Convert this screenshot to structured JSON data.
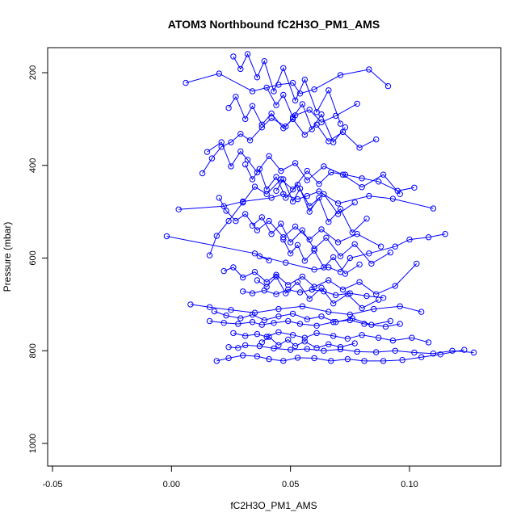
{
  "chart_data": {
    "type": "scatter",
    "title": "ATOM3 Northbound fC2H3O_PM1_AMS",
    "xlabel": "fC2H3O_PM1_AMS",
    "ylabel": "Pressure (mbar)",
    "xlim": [
      -0.05,
      0.14
    ],
    "ylim": [
      1045,
      150
    ],
    "y_reversed": true,
    "grid": false,
    "legend": "none",
    "color": "#0000ff",
    "marker": "open-circle",
    "lines_connect_points": true,
    "x_ticks": [
      -0.05,
      0.0,
      0.05,
      0.1
    ],
    "x_tick_labels": [
      "-0.05",
      "0.00",
      "0.05",
      "0.10"
    ],
    "y_ticks": [
      200,
      400,
      600,
      800,
      1000
    ],
    "y_tick_labels": [
      "200",
      "400",
      "600",
      "800",
      "1000"
    ],
    "series": [
      {
        "x": [
          -0.002,
          0.035,
          0.041,
          0.037,
          0.048,
          0.06,
          0.066,
          0.071,
          0.075,
          0.083,
          0.094,
          0.1,
          0.108,
          0.115
        ],
        "y": [
          553,
          590,
          605,
          596,
          610,
          625,
          620,
          630,
          600,
          590,
          575,
          560,
          555,
          548
        ]
      },
      {
        "x": [
          0.003,
          0.022,
          0.03,
          0.042,
          0.047,
          0.053,
          0.057,
          0.062,
          0.07,
          0.083,
          0.093,
          0.11
        ],
        "y": [
          495,
          488,
          478,
          470,
          462,
          473,
          466,
          456,
          482,
          466,
          472,
          493
        ]
      },
      {
        "x": [
          0.006,
          0.02,
          0.034,
          0.045,
          0.051,
          0.054,
          0.06,
          0.071,
          0.083,
          0.091
        ],
        "y": [
          222,
          202,
          240,
          226,
          222,
          245,
          236,
          205,
          193,
          229
        ]
      },
      {
        "x": [
          0.008,
          0.016,
          0.025,
          0.035,
          0.045,
          0.055,
          0.066,
          0.075,
          0.085,
          0.096,
          0.105
        ],
        "y": [
          700,
          706,
          712,
          718,
          710,
          704,
          716,
          722,
          710,
          704,
          716
        ]
      },
      {
        "x": [
          0.016,
          0.022,
          0.028,
          0.034,
          0.038,
          0.043,
          0.049,
          0.054,
          0.061,
          0.068,
          0.075,
          0.081,
          0.09,
          0.096
        ],
        "y": [
          736,
          740,
          742,
          738,
          744,
          740,
          736,
          742,
          746,
          738,
          734,
          742,
          748,
          742
        ]
      },
      {
        "x": [
          0.019,
          0.024,
          0.03,
          0.036,
          0.041,
          0.047,
          0.053,
          0.06,
          0.067,
          0.074,
          0.081,
          0.089,
          0.097,
          0.105,
          0.113,
          0.123
        ],
        "y": [
          822,
          816,
          810,
          812,
          818,
          822,
          815,
          816,
          822,
          818,
          822,
          822,
          820,
          814,
          808,
          798
        ]
      },
      {
        "x": [
          0.024,
          0.028,
          0.031,
          0.037,
          0.043,
          0.05,
          0.057,
          0.064,
          0.071,
          0.078,
          0.086,
          0.094,
          0.102,
          0.11,
          0.118,
          0.127
        ],
        "y": [
          792,
          794,
          788,
          790,
          795,
          798,
          796,
          800,
          797,
          802,
          803,
          800,
          804,
          806,
          800,
          804
        ]
      },
      {
        "x": [
          0.026,
          0.031,
          0.036,
          0.04,
          0.045,
          0.051,
          0.056,
          0.061,
          0.068,
          0.074,
          0.08,
          0.087,
          0.093,
          0.101,
          0.108
        ],
        "y": [
          762,
          768,
          764,
          770,
          760,
          766,
          772,
          762,
          768,
          774,
          766,
          772,
          778,
          772,
          782
        ]
      },
      {
        "x": [
          0.03,
          0.034,
          0.039,
          0.044,
          0.049,
          0.054,
          0.059,
          0.064,
          0.069,
          0.075,
          0.082,
          0.089
        ],
        "y": [
          672,
          676,
          670,
          678,
          668,
          674,
          668,
          672,
          680,
          676,
          682,
          686
        ]
      },
      {
        "x": [
          0.016,
          0.019,
          0.024,
          0.03,
          0.035,
          0.04,
          0.046,
          0.051,
          0.057,
          0.062,
          0.067,
          0.073,
          0.08,
          0.087,
          0.095,
          0.102
        ],
        "y": [
          594,
          552,
          520,
          480,
          446,
          462,
          430,
          452,
          412,
          440,
          415,
          420,
          428,
          435,
          455,
          448
        ]
      },
      {
        "x": [
          0.013,
          0.017,
          0.021,
          0.025,
          0.029,
          0.033,
          0.038,
          0.042,
          0.048,
          0.052,
          0.058,
          0.063,
          0.069,
          0.078
        ],
        "y": [
          417,
          385,
          360,
          350,
          332,
          346,
          318,
          298,
          316,
          292,
          280,
          307,
          293,
          267
        ]
      },
      {
        "x": [
          0.015,
          0.021,
          0.025,
          0.029,
          0.032,
          0.036,
          0.041,
          0.046,
          0.052,
          0.057,
          0.064,
          0.072,
          0.08,
          0.089,
          0.096
        ],
        "y": [
          371,
          350,
          402,
          370,
          388,
          415,
          380,
          412,
          395,
          432,
          402,
          420,
          447,
          420,
          462
        ]
      },
      {
        "x": [
          0.02,
          0.023,
          0.027,
          0.031,
          0.036,
          0.041,
          0.047,
          0.052,
          0.058,
          0.063,
          0.07,
          0.078,
          0.088
        ],
        "y": [
          470,
          498,
          520,
          505,
          540,
          520,
          555,
          532,
          560,
          538,
          566,
          548,
          575
        ]
      },
      {
        "x": [
          0.022,
          0.026,
          0.03,
          0.035,
          0.04,
          0.044,
          0.049,
          0.055,
          0.06,
          0.066,
          0.072,
          0.079,
          0.086,
          0.094,
          0.103
        ],
        "y": [
          628,
          620,
          642,
          630,
          652,
          636,
          658,
          640,
          662,
          648,
          668,
          652,
          678,
          660,
          612
        ]
      },
      {
        "x": [
          0.018,
          0.023,
          0.029,
          0.034,
          0.039,
          0.045,
          0.051,
          0.057,
          0.063,
          0.069,
          0.076,
          0.084,
          0.092
        ],
        "y": [
          715,
          724,
          730,
          722,
          734,
          726,
          720,
          732,
          726,
          738,
          730,
          744,
          736
        ]
      },
      {
        "x": [
          0.024,
          0.027,
          0.031,
          0.034,
          0.038,
          0.042,
          0.047,
          0.051,
          0.056,
          0.061,
          0.066,
          0.072,
          0.079,
          0.086
        ],
        "y": [
          276,
          252,
          300,
          272,
          312,
          288,
          320,
          300,
          334,
          312,
          348,
          328,
          362,
          344
        ]
      },
      {
        "x": [
          0.026,
          0.029,
          0.032,
          0.036,
          0.039,
          0.043,
          0.047,
          0.052,
          0.056,
          0.061,
          0.066,
          0.071
        ],
        "y": [
          165,
          192,
          160,
          210,
          175,
          240,
          190,
          260,
          215,
          285,
          238,
          310
        ]
      },
      {
        "x": [
          0.031,
          0.034,
          0.037,
          0.04,
          0.044,
          0.048,
          0.053,
          0.058,
          0.064,
          0.07,
          0.077
        ],
        "y": [
          398,
          430,
          408,
          452,
          425,
          470,
          442,
          488,
          462,
          505,
          480
        ]
      },
      {
        "x": [
          0.034,
          0.038,
          0.042,
          0.046,
          0.05,
          0.055,
          0.06,
          0.065,
          0.071,
          0.077,
          0.084,
          0.092
        ],
        "y": [
          530,
          512,
          548,
          526,
          566,
          540,
          580,
          556,
          596,
          570,
          612,
          588
        ]
      },
      {
        "x": [
          0.036,
          0.04,
          0.044,
          0.048,
          0.053,
          0.058,
          0.063,
          0.068,
          0.074,
          0.08,
          0.087
        ],
        "y": [
          648,
          662,
          640,
          676,
          652,
          688,
          664,
          698,
          678,
          708,
          690
        ]
      },
      {
        "x": [
          0.038,
          0.041,
          0.045,
          0.049,
          0.052,
          0.056,
          0.061,
          0.066,
          0.071,
          0.077
        ],
        "y": [
          782,
          770,
          788,
          776,
          790,
          780,
          794,
          786,
          792,
          784
        ]
      },
      {
        "x": [
          0.04,
          0.044,
          0.047,
          0.051,
          0.055,
          0.059,
          0.063,
          0.068,
          0.073
        ],
        "y": [
          232,
          270,
          248,
          296,
          268,
          322,
          290,
          350,
          318
        ]
      },
      {
        "x": [
          0.044,
          0.047,
          0.051,
          0.054,
          0.058,
          0.062,
          0.066,
          0.071,
          0.076,
          0.082
        ],
        "y": [
          455,
          430,
          478,
          450,
          500,
          470,
          522,
          494,
          545,
          515
        ]
      },
      {
        "x": [
          0.047,
          0.05,
          0.053,
          0.056,
          0.06,
          0.064,
          0.068,
          0.073,
          0.079
        ],
        "y": [
          560,
          590,
          572,
          606,
          584,
          620,
          598,
          634,
          614
        ]
      }
    ]
  }
}
